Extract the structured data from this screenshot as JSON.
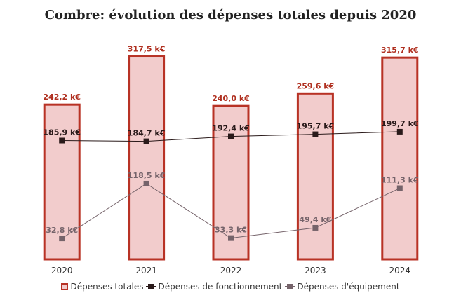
{
  "chart_data": {
    "type": "bar",
    "title": "Combre: évolution des dépenses totales depuis 2020",
    "categories": [
      "2020",
      "2021",
      "2022",
      "2023",
      "2024"
    ],
    "ylim": [
      0,
      340
    ],
    "grid": false,
    "legend_position": "bottom",
    "series": [
      {
        "name": "Dépenses totales",
        "kind": "bar",
        "values": [
          242.2,
          317.5,
          240.0,
          259.6,
          315.7
        ],
        "labels": [
          "242,2 k€",
          "317,5 k€",
          "240,0 k€",
          "259,6 k€",
          "315,7 k€"
        ],
        "color": "#b83225",
        "fill": "#f2cccc"
      },
      {
        "name": "Dépenses de fonctionnement",
        "kind": "line",
        "values": [
          185.9,
          184.7,
          192.4,
          195.7,
          199.7
        ],
        "labels": [
          "185,9 k€",
          "184,7 k€",
          "192,4 k€",
          "195,7 k€",
          "199,7 k€"
        ],
        "color": "#2a1a1a"
      },
      {
        "name": "Dépenses d'équipement",
        "kind": "line",
        "values": [
          32.8,
          118.5,
          33.3,
          49.4,
          111.3
        ],
        "labels": [
          "32,8 k€",
          "118,5 k€",
          "33,3 k€",
          "49,4 k€",
          "111,3 k€"
        ],
        "color": "#75636a"
      }
    ]
  }
}
